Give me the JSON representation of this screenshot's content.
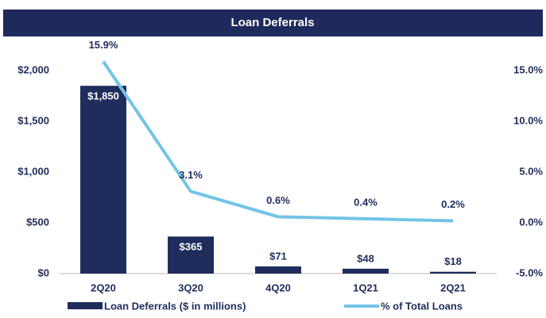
{
  "chart_data": {
    "type": "bar_line",
    "title": "Loan Deferrals",
    "categories": [
      "2Q20",
      "3Q20",
      "4Q20",
      "1Q21",
      "2Q21"
    ],
    "series": [
      {
        "name": "Loan Deferrals ($ in millions)",
        "type": "bar",
        "color": "#1f2d5c",
        "values": [
          1850,
          365,
          71,
          48,
          18
        ],
        "value_labels": [
          "$1,850",
          "$365",
          "$71",
          "$48",
          "$18"
        ]
      },
      {
        "name": "% of Total Loans",
        "type": "line",
        "axis": "y2",
        "color": "#74c3e8",
        "values": [
          15.9,
          3.1,
          0.6,
          0.4,
          0.2
        ],
        "value_labels": [
          "15.9%",
          "3.1%",
          "0.6%",
          "0.4%",
          "0.2%"
        ]
      }
    ],
    "ylim": [
      0,
      2000
    ],
    "yticks": [
      {
        "value": 0,
        "label": "$0"
      },
      {
        "value": 500,
        "label": "$500"
      },
      {
        "value": 1000,
        "label": "$1,000"
      },
      {
        "value": 1500,
        "label": "$1,500"
      },
      {
        "value": 2000,
        "label": "$2,000"
      }
    ],
    "y2lim": [
      -5,
      15
    ],
    "y2ticks": [
      {
        "value": -5,
        "label": "-5.0%"
      },
      {
        "value": 0,
        "label": "0.0%"
      },
      {
        "value": 5,
        "label": "5.0%"
      },
      {
        "value": 10,
        "label": "10.0%"
      },
      {
        "value": 15,
        "label": "15.0%"
      }
    ],
    "grid": false,
    "legend": "bottom"
  }
}
